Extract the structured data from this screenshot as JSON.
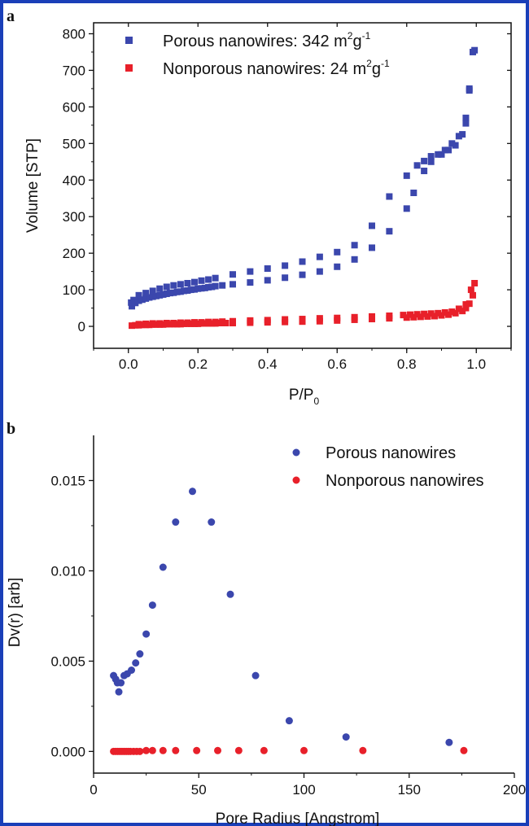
{
  "panels": {
    "a": {
      "letter": "a"
    },
    "b": {
      "letter": "b"
    }
  },
  "colors": {
    "porous": "#3b47ad",
    "nonporous": "#e8202a",
    "axis": "#111111",
    "frame": "#1a3fb8"
  },
  "chart_data": [
    {
      "type": "scatter",
      "panel": "a",
      "xlabel_main": "P/P",
      "xlabel_sub": "0",
      "ylabel": "Volume [STP]",
      "xlim": [
        -0.1,
        1.1
      ],
      "ylim": [
        -60,
        830
      ],
      "xticks": [
        0.0,
        0.2,
        0.4,
        0.6,
        0.8,
        1.0
      ],
      "xtick_labels": [
        "0.0",
        "0.2",
        "0.4",
        "0.6",
        "0.8",
        "1.0"
      ],
      "yticks": [
        0,
        100,
        200,
        300,
        400,
        500,
        600,
        700,
        800
      ],
      "ytick_labels": [
        "0",
        "100",
        "200",
        "300",
        "400",
        "500",
        "600",
        "700",
        "800"
      ],
      "legend_placement": "top-left",
      "series": [
        {
          "name": "Porous nanowires: 342 m",
          "legend_sup1": "2",
          "legend_mid": "g",
          "legend_sup2": "-1",
          "marker": "square",
          "color_key": "porous",
          "points": [
            [
              0.01,
              55
            ],
            [
              0.02,
              64
            ],
            [
              0.03,
              70
            ],
            [
              0.04,
              73
            ],
            [
              0.05,
              76
            ],
            [
              0.06,
              79
            ],
            [
              0.07,
              81
            ],
            [
              0.08,
              83
            ],
            [
              0.09,
              85
            ],
            [
              0.1,
              87
            ],
            [
              0.11,
              89
            ],
            [
              0.12,
              91
            ],
            [
              0.13,
              92
            ],
            [
              0.14,
              94
            ],
            [
              0.15,
              95
            ],
            [
              0.16,
              97
            ],
            [
              0.17,
              98
            ],
            [
              0.18,
              100
            ],
            [
              0.19,
              101
            ],
            [
              0.2,
              103
            ],
            [
              0.21,
              104
            ],
            [
              0.22,
              105
            ],
            [
              0.23,
              107
            ],
            [
              0.24,
              108
            ],
            [
              0.25,
              110
            ],
            [
              0.27,
              112
            ],
            [
              0.3,
              115
            ],
            [
              0.35,
              120
            ],
            [
              0.4,
              126
            ],
            [
              0.45,
              133
            ],
            [
              0.5,
              141
            ],
            [
              0.55,
              150
            ],
            [
              0.6,
              163
            ],
            [
              0.65,
              183
            ],
            [
              0.7,
              215
            ],
            [
              0.75,
              260
            ],
            [
              0.8,
              322
            ],
            [
              0.82,
              365
            ],
            [
              0.85,
              425
            ],
            [
              0.87,
              450
            ],
            [
              0.9,
              470
            ],
            [
              0.92,
              482
            ],
            [
              0.94,
              495
            ],
            [
              0.96,
              525
            ],
            [
              0.97,
              555
            ],
            [
              0.98,
              645
            ],
            [
              0.99,
              750
            ],
            [
              0.995,
              755
            ],
            [
              0.98,
              650
            ],
            [
              0.97,
              570
            ],
            [
              0.95,
              520
            ],
            [
              0.93,
              500
            ],
            [
              0.91,
              482
            ],
            [
              0.89,
              470
            ],
            [
              0.87,
              465
            ],
            [
              0.85,
              452
            ],
            [
              0.83,
              440
            ],
            [
              0.8,
              412
            ],
            [
              0.75,
              355
            ],
            [
              0.7,
              275
            ],
            [
              0.65,
              222
            ],
            [
              0.6,
              203
            ],
            [
              0.55,
              190
            ],
            [
              0.5,
              177
            ],
            [
              0.45,
              166
            ],
            [
              0.4,
              158
            ],
            [
              0.35,
              150
            ],
            [
              0.3,
              142
            ],
            [
              0.25,
              132
            ],
            [
              0.23,
              128
            ],
            [
              0.21,
              125
            ],
            [
              0.19,
              121
            ],
            [
              0.17,
              118
            ],
            [
              0.15,
              115
            ],
            [
              0.13,
              112
            ],
            [
              0.11,
              108
            ],
            [
              0.09,
              103
            ],
            [
              0.07,
              97
            ],
            [
              0.05,
              91
            ],
            [
              0.03,
              85
            ],
            [
              0.015,
              72
            ],
            [
              0.008,
              65
            ]
          ]
        },
        {
          "name": "Nonporous nanowires: 24 m",
          "legend_sup1": "2",
          "legend_mid": "g",
          "legend_sup2": "-1",
          "marker": "square",
          "color_key": "nonporous",
          "points": [
            [
              0.01,
              2
            ],
            [
              0.02,
              3
            ],
            [
              0.03,
              3
            ],
            [
              0.04,
              4
            ],
            [
              0.05,
              4
            ],
            [
              0.06,
              4
            ],
            [
              0.07,
              5
            ],
            [
              0.08,
              5
            ],
            [
              0.09,
              5
            ],
            [
              0.1,
              5
            ],
            [
              0.11,
              6
            ],
            [
              0.12,
              6
            ],
            [
              0.13,
              6
            ],
            [
              0.14,
              6
            ],
            [
              0.15,
              6
            ],
            [
              0.16,
              7
            ],
            [
              0.17,
              7
            ],
            [
              0.18,
              7
            ],
            [
              0.19,
              7
            ],
            [
              0.2,
              7
            ],
            [
              0.21,
              8
            ],
            [
              0.22,
              8
            ],
            [
              0.23,
              8
            ],
            [
              0.24,
              8
            ],
            [
              0.25,
              8
            ],
            [
              0.26,
              9
            ],
            [
              0.27,
              9
            ],
            [
              0.28,
              9
            ],
            [
              0.3,
              9
            ],
            [
              0.35,
              10
            ],
            [
              0.4,
              11
            ],
            [
              0.45,
              12
            ],
            [
              0.5,
              13
            ],
            [
              0.55,
              14
            ],
            [
              0.6,
              16
            ],
            [
              0.65,
              18
            ],
            [
              0.7,
              20
            ],
            [
              0.75,
              22
            ],
            [
              0.8,
              24
            ],
            [
              0.82,
              25
            ],
            [
              0.84,
              26
            ],
            [
              0.86,
              27
            ],
            [
              0.88,
              28
            ],
            [
              0.9,
              30
            ],
            [
              0.92,
              32
            ],
            [
              0.94,
              36
            ],
            [
              0.96,
              42
            ],
            [
              0.97,
              50
            ],
            [
              0.98,
              62
            ],
            [
              0.99,
              85
            ],
            [
              0.995,
              118
            ],
            [
              0.985,
              100
            ],
            [
              0.97,
              60
            ],
            [
              0.95,
              48
            ],
            [
              0.93,
              40
            ],
            [
              0.91,
              38
            ],
            [
              0.89,
              36
            ],
            [
              0.87,
              35
            ],
            [
              0.85,
              34
            ],
            [
              0.83,
              33
            ],
            [
              0.81,
              32
            ],
            [
              0.79,
              31
            ],
            [
              0.75,
              29
            ],
            [
              0.7,
              27
            ],
            [
              0.65,
              25
            ],
            [
              0.6,
              23
            ],
            [
              0.55,
              22
            ],
            [
              0.5,
              20
            ],
            [
              0.45,
              19
            ],
            [
              0.4,
              17
            ],
            [
              0.35,
              16
            ],
            [
              0.3,
              14
            ],
            [
              0.27,
              13
            ],
            [
              0.25,
              12
            ],
            [
              0.23,
              12
            ],
            [
              0.21,
              11
            ],
            [
              0.19,
              11
            ],
            [
              0.17,
              10
            ],
            [
              0.15,
              10
            ],
            [
              0.13,
              9
            ],
            [
              0.11,
              9
            ],
            [
              0.09,
              8
            ],
            [
              0.07,
              8
            ],
            [
              0.05,
              7
            ],
            [
              0.03,
              6
            ]
          ]
        }
      ]
    },
    {
      "type": "scatter",
      "panel": "b",
      "xlabel": "Pore Radius [Angstrom]",
      "ylabel": "Dv(r) [arb]",
      "xlim": [
        0,
        200
      ],
      "ylim": [
        -0.0012,
        0.0175
      ],
      "xticks": [
        0,
        50,
        100,
        150,
        200
      ],
      "xtick_labels": [
        "0",
        "50",
        "100",
        "150",
        "200"
      ],
      "yticks": [
        0.0,
        0.005,
        0.01,
        0.015
      ],
      "ytick_labels": [
        "0.000",
        "0.005",
        "0.010",
        "0.015"
      ],
      "legend_placement": "top-right",
      "series": [
        {
          "name": "Porous nanowires",
          "marker": "circle",
          "color_key": "porous",
          "points": [
            [
              9.5,
              0.0042
            ],
            [
              10.5,
              0.004
            ],
            [
              11.3,
              0.0038
            ],
            [
              12,
              0.0033
            ],
            [
              13,
              0.0038
            ],
            [
              14.5,
              0.0042
            ],
            [
              16,
              0.0043
            ],
            [
              18,
              0.0045
            ],
            [
              20,
              0.0049
            ],
            [
              22,
              0.0054
            ],
            [
              25,
              0.0065
            ],
            [
              28,
              0.0081
            ],
            [
              33,
              0.0102
            ],
            [
              39,
              0.0127
            ],
            [
              47,
              0.0144
            ],
            [
              56,
              0.0127
            ],
            [
              65,
              0.0087
            ],
            [
              77,
              0.0042
            ],
            [
              93,
              0.0017
            ],
            [
              120,
              0.0008
            ],
            [
              169,
              0.0005
            ]
          ]
        },
        {
          "name": "Nonporous nanowires",
          "marker": "circle",
          "color_key": "nonporous",
          "points": [
            [
              9.5,
              0
            ],
            [
              10.5,
              0
            ],
            [
              11.5,
              0
            ],
            [
              12.5,
              0
            ],
            [
              13.5,
              0
            ],
            [
              14.5,
              0
            ],
            [
              15.5,
              0
            ],
            [
              16.5,
              0
            ],
            [
              17.5,
              0
            ],
            [
              19,
              0
            ],
            [
              20.5,
              0
            ],
            [
              22,
              0
            ],
            [
              25,
              5e-05
            ],
            [
              28,
              5e-05
            ],
            [
              33,
              5e-05
            ],
            [
              39,
              5e-05
            ],
            [
              49,
              5e-05
            ],
            [
              59,
              5e-05
            ],
            [
              69,
              5e-05
            ],
            [
              81,
              5e-05
            ],
            [
              100,
              5e-05
            ],
            [
              128,
              5e-05
            ],
            [
              176,
              5e-05
            ]
          ]
        }
      ]
    }
  ]
}
